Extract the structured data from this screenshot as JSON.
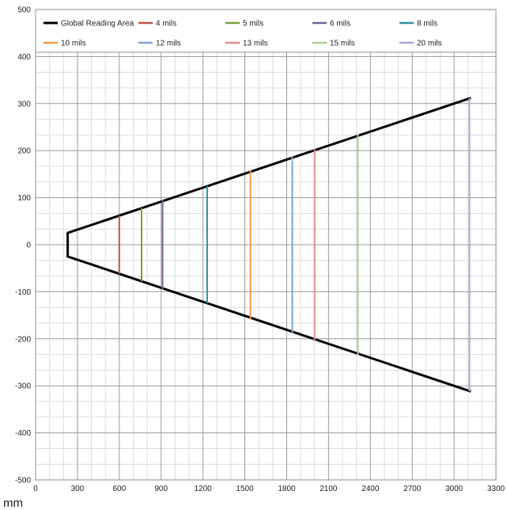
{
  "chart_data": {
    "type": "line",
    "x_unit_label": "mm",
    "xlim": [
      0,
      3300
    ],
    "ylim": [
      -500,
      500
    ],
    "x_ticks": [
      0,
      300,
      600,
      900,
      1200,
      1500,
      1800,
      2100,
      2400,
      2700,
      3000,
      3300
    ],
    "y_ticks": [
      500,
      400,
      300,
      200,
      100,
      0,
      -100,
      -200,
      -300,
      -400,
      -500
    ],
    "grid": true,
    "minor_grid_per_major": 3,
    "legend_placement": "top",
    "series": [
      {
        "name": "Global Reading Area",
        "color": "#000000",
        "points": [
          [
            3120,
            312
          ],
          [
            230,
            25
          ],
          [
            230,
            -25
          ],
          [
            3120,
            -312
          ]
        ]
      },
      {
        "name": "4 mils",
        "color": "#c0504d",
        "points": [
          [
            600,
            62
          ],
          [
            600,
            -62
          ]
        ]
      },
      {
        "name": "5 mils",
        "color": "#77a03a",
        "points": [
          [
            760,
            78
          ],
          [
            760,
            -78
          ]
        ]
      },
      {
        "name": "6 mils",
        "color": "#7b5ea0",
        "points": [
          [
            910,
            95
          ],
          [
            910,
            -95
          ]
        ]
      },
      {
        "name": "8 mils",
        "color": "#2a8fa6",
        "points": [
          [
            1230,
            125
          ],
          [
            1230,
            -125
          ]
        ]
      },
      {
        "name": "10 mils",
        "color": "#f79646",
        "points": [
          [
            1540,
            158
          ],
          [
            1540,
            -158
          ]
        ]
      },
      {
        "name": "12 mils",
        "color": "#7ea6d0",
        "points": [
          [
            1840,
            188
          ],
          [
            1840,
            -188
          ]
        ]
      },
      {
        "name": "13 mils",
        "color": "#e08a8a",
        "points": [
          [
            2000,
            205
          ],
          [
            2000,
            -205
          ]
        ]
      },
      {
        "name": "15 mils",
        "color": "#a9cf86",
        "points": [
          [
            2310,
            235
          ],
          [
            2310,
            -235
          ]
        ]
      },
      {
        "name": "20 mils",
        "color": "#b4a2d0",
        "points": [
          [
            3110,
            312
          ],
          [
            3110,
            -312
          ]
        ]
      }
    ]
  }
}
